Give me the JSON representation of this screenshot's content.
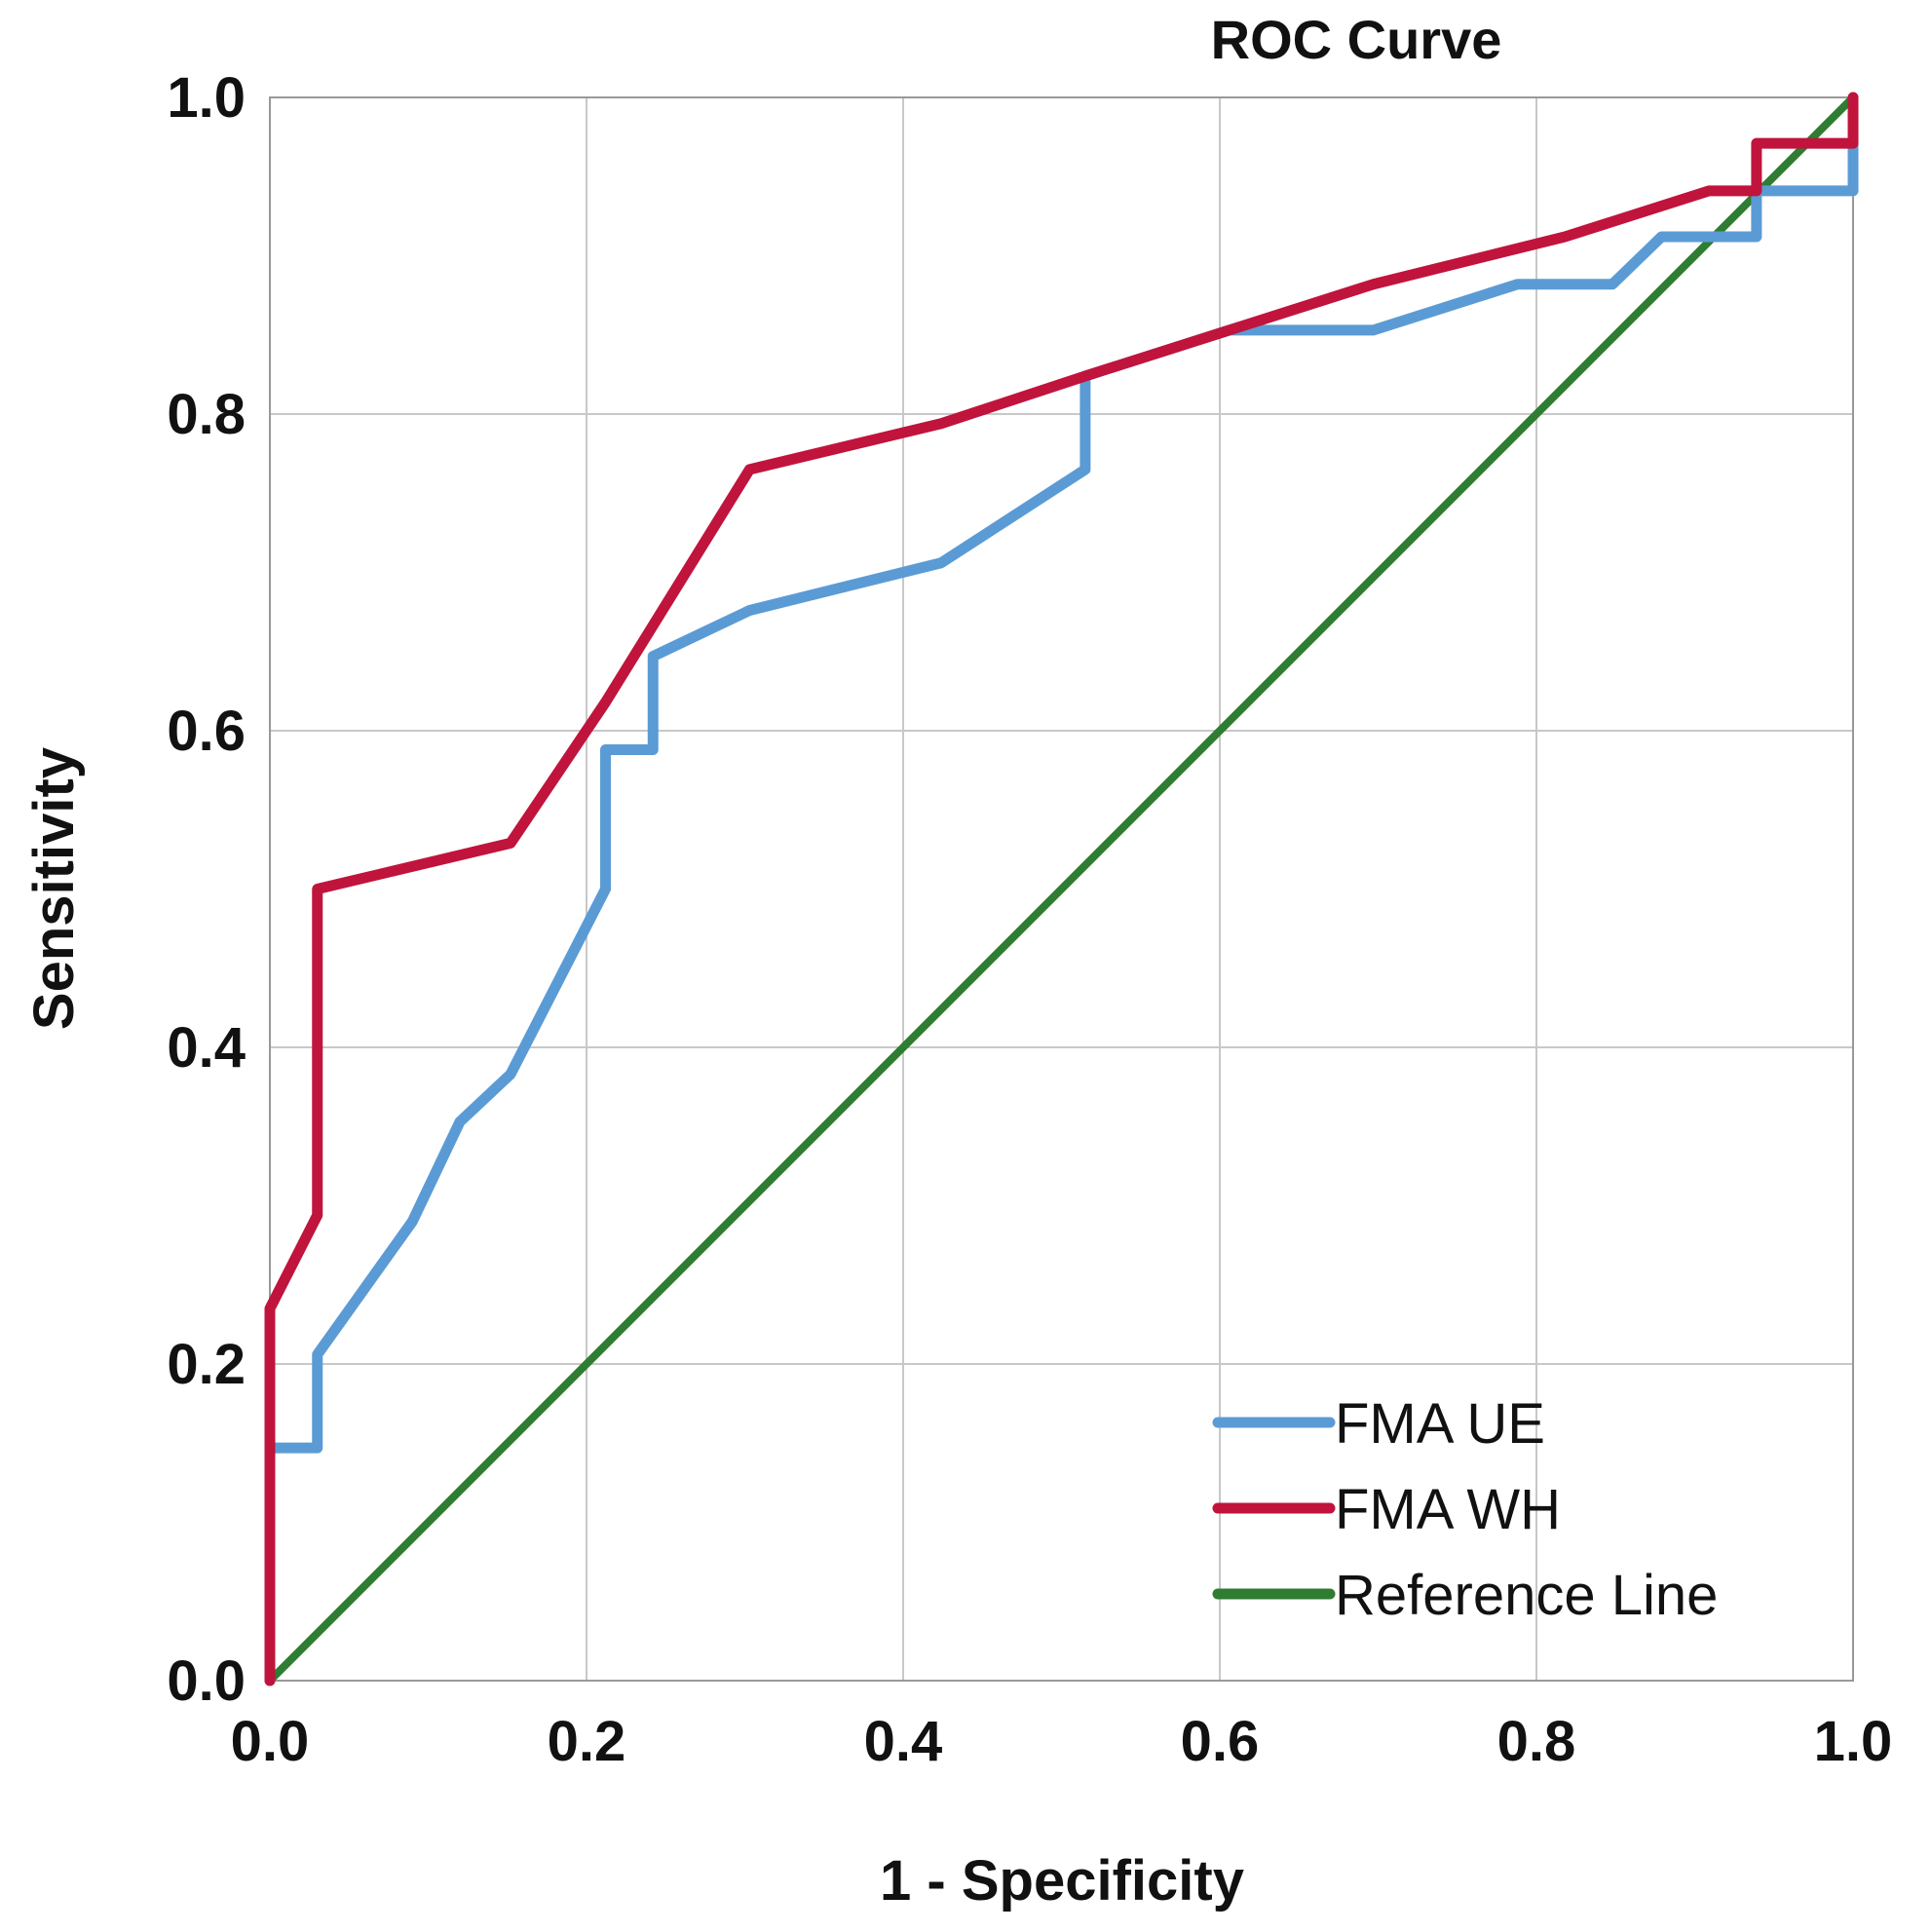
{
  "chart_data": {
    "type": "line",
    "title": "ROC Curve",
    "xlabel": "1 - Specificity",
    "ylabel": "Sensitivity",
    "xlim": [
      0,
      1
    ],
    "ylim": [
      0,
      1
    ],
    "grid": true,
    "x_ticks": [
      "0.0",
      "0.2",
      "0.4",
      "0.6",
      "0.8",
      "1.0"
    ],
    "y_ticks": [
      "0.0",
      "0.2",
      "0.4",
      "0.6",
      "0.8",
      "1.0"
    ],
    "legend_position": "bottom-right",
    "series": [
      {
        "name": "FMA UE",
        "color": "#5b9bd5",
        "points": [
          [
            0,
            0
          ],
          [
            0,
            0.147
          ],
          [
            0.03,
            0.147
          ],
          [
            0.03,
            0.206
          ],
          [
            0.09,
            0.29
          ],
          [
            0.12,
            0.353
          ],
          [
            0.152,
            0.383
          ],
          [
            0.212,
            0.5
          ],
          [
            0.212,
            0.588
          ],
          [
            0.242,
            0.588
          ],
          [
            0.242,
            0.647
          ],
          [
            0.303,
            0.676
          ],
          [
            0.424,
            0.706
          ],
          [
            0.515,
            0.765
          ],
          [
            0.515,
            0.824
          ],
          [
            0.606,
            0.853
          ],
          [
            0.697,
            0.853
          ],
          [
            0.788,
            0.882
          ],
          [
            0.848,
            0.882
          ],
          [
            0.879,
            0.912
          ],
          [
            0.939,
            0.912
          ],
          [
            0.939,
            0.941
          ],
          [
            1.0,
            0.941
          ],
          [
            1.0,
            1.0
          ]
        ]
      },
      {
        "name": "FMA WH",
        "color": "#c0143c",
        "points": [
          [
            0,
            0
          ],
          [
            0,
            0.235
          ],
          [
            0.03,
            0.294
          ],
          [
            0.03,
            0.5
          ],
          [
            0.152,
            0.529
          ],
          [
            0.212,
            0.618
          ],
          [
            0.303,
            0.765
          ],
          [
            0.424,
            0.794
          ],
          [
            0.515,
            0.824
          ],
          [
            0.606,
            0.853
          ],
          [
            0.697,
            0.882
          ],
          [
            0.818,
            0.912
          ],
          [
            0.909,
            0.941
          ],
          [
            0.939,
            0.941
          ],
          [
            0.939,
            0.971
          ],
          [
            1.0,
            0.971
          ],
          [
            1.0,
            1.0
          ]
        ]
      },
      {
        "name": "Reference Line",
        "color": "#2e7d32",
        "points": [
          [
            0,
            0
          ],
          [
            1,
            1
          ]
        ]
      }
    ]
  }
}
